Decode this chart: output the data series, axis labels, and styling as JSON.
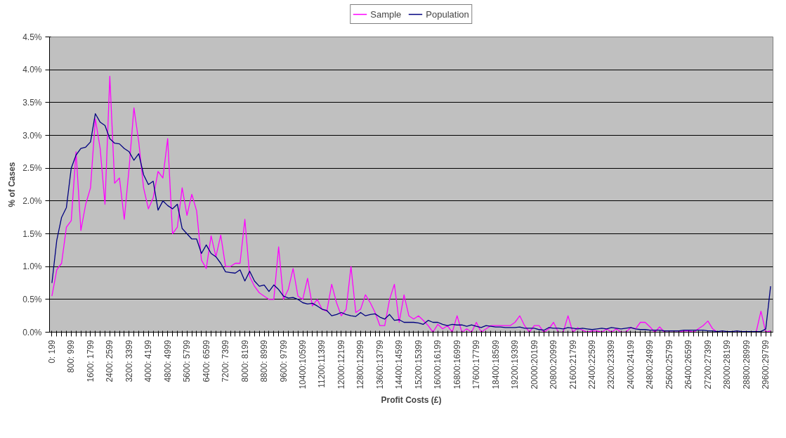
{
  "chart_data": {
    "type": "line",
    "xlabel": "Profit Costs (£)",
    "ylabel": "% of Cases",
    "categories": [
      "0: 199",
      null,
      null,
      null,
      "800: 999",
      null,
      null,
      null,
      "1600: 1799",
      null,
      null,
      null,
      "2400: 2599",
      null,
      null,
      null,
      "3200: 3399",
      null,
      null,
      null,
      "4000: 4199",
      null,
      null,
      null,
      "4800: 4999",
      null,
      null,
      null,
      "5600: 5799",
      null,
      null,
      null,
      "6400: 6599",
      null,
      null,
      null,
      "7200: 7399",
      null,
      null,
      null,
      "8000: 8199",
      null,
      null,
      null,
      "8800: 8999",
      null,
      null,
      null,
      "9600: 9799",
      null,
      null,
      null,
      "10400:10599",
      null,
      null,
      null,
      "11200:11399",
      null,
      null,
      null,
      "12000:12199",
      null,
      null,
      null,
      "12800:12999",
      null,
      null,
      null,
      "13600:13799",
      null,
      null,
      null,
      "14400:14599",
      null,
      null,
      null,
      "15200:15399",
      null,
      null,
      null,
      "16000:16199",
      null,
      null,
      null,
      "16800:16999",
      null,
      null,
      null,
      "17600:17799",
      null,
      null,
      null,
      "18400:18599",
      null,
      null,
      null,
      "19200:19399",
      null,
      null,
      null,
      "20000:20199",
      null,
      null,
      null,
      "20800:20999",
      null,
      null,
      null,
      "21600:21799",
      null,
      null,
      null,
      "22400:22599",
      null,
      null,
      null,
      "23200:23399",
      null,
      null,
      null,
      "24000:24199",
      null,
      null,
      null,
      "24800:24999",
      null,
      null,
      null,
      "25600:25799",
      null,
      null,
      null,
      "26400:26599",
      null,
      null,
      null,
      "27200:27399",
      null,
      null,
      null,
      "28000:28199",
      null,
      null,
      null,
      "28800:28999",
      null,
      null,
      null,
      "29600:29799",
      null
    ],
    "series": [
      {
        "name": "Sample",
        "color": "#ff00ff",
        "values": [
          0.55,
          0.95,
          1.05,
          1.6,
          1.7,
          2.75,
          1.55,
          1.95,
          2.2,
          3.25,
          2.8,
          1.95,
          3.9,
          2.27,
          2.35,
          1.72,
          2.5,
          3.42,
          2.9,
          2.2,
          1.88,
          2.05,
          2.45,
          2.35,
          2.95,
          1.5,
          1.6,
          2.2,
          1.78,
          2.1,
          1.85,
          1.1,
          0.97,
          1.47,
          1.15,
          1.48,
          1.0,
          1.0,
          1.05,
          1.05,
          1.72,
          0.85,
          0.7,
          0.6,
          0.55,
          0.5,
          0.5,
          1.3,
          0.5,
          0.65,
          0.97,
          0.55,
          0.5,
          0.82,
          0.4,
          0.5,
          0.35,
          0.32,
          0.73,
          0.45,
          0.25,
          0.35,
          1.0,
          0.3,
          0.35,
          0.57,
          0.45,
          0.3,
          0.1,
          0.1,
          0.5,
          0.73,
          0.15,
          0.57,
          0.25,
          0.2,
          0.25,
          0.18,
          0.1,
          0.0,
          0.12,
          0.05,
          0.1,
          0.0,
          0.25,
          0.0,
          0.05,
          0.0,
          0.15,
          0.0,
          0.05,
          0.1,
          0.1,
          0.1,
          0.1,
          0.1,
          0.15,
          0.25,
          0.1,
          0.0,
          0.1,
          0.1,
          0.0,
          0.05,
          0.15,
          0.0,
          0.0,
          0.25,
          0.0,
          0.07,
          0.03,
          0.0,
          0.02,
          0.02,
          0.0,
          0.05,
          0.0,
          0.05,
          0.0,
          0.0,
          0.07,
          0.05,
          0.15,
          0.15,
          0.08,
          0.0,
          0.08,
          0.0,
          0.0,
          0.0,
          0.0,
          0.02,
          0.02,
          0.0,
          0.05,
          0.1,
          0.17,
          0.05,
          0.0,
          0.0,
          0.0,
          0.0,
          0.0,
          0.0,
          0.0,
          0.0,
          0.0,
          0.32,
          0.0,
          0.02
        ]
      },
      {
        "name": "Population",
        "color": "#000080",
        "values": [
          0.75,
          1.4,
          1.75,
          1.9,
          2.5,
          2.7,
          2.8,
          2.82,
          2.9,
          3.33,
          3.2,
          3.15,
          2.95,
          2.88,
          2.87,
          2.8,
          2.75,
          2.62,
          2.72,
          2.4,
          2.25,
          2.3,
          1.86,
          2.0,
          1.93,
          1.88,
          1.95,
          1.58,
          1.5,
          1.42,
          1.42,
          1.2,
          1.33,
          1.2,
          1.15,
          1.05,
          0.92,
          0.91,
          0.9,
          0.95,
          0.78,
          0.93,
          0.78,
          0.7,
          0.72,
          0.62,
          0.72,
          0.65,
          0.55,
          0.52,
          0.53,
          0.5,
          0.45,
          0.43,
          0.44,
          0.4,
          0.35,
          0.33,
          0.25,
          0.27,
          0.3,
          0.27,
          0.25,
          0.24,
          0.3,
          0.25,
          0.27,
          0.28,
          0.23,
          0.2,
          0.27,
          0.18,
          0.19,
          0.15,
          0.15,
          0.15,
          0.14,
          0.12,
          0.18,
          0.15,
          0.15,
          0.12,
          0.1,
          0.12,
          0.11,
          0.11,
          0.09,
          0.11,
          0.09,
          0.07,
          0.1,
          0.09,
          0.08,
          0.08,
          0.07,
          0.07,
          0.07,
          0.08,
          0.06,
          0.06,
          0.06,
          0.04,
          0.03,
          0.07,
          0.06,
          0.06,
          0.05,
          0.07,
          0.06,
          0.05,
          0.06,
          0.05,
          0.04,
          0.05,
          0.06,
          0.05,
          0.07,
          0.06,
          0.05,
          0.06,
          0.07,
          0.05,
          0.04,
          0.04,
          0.03,
          0.03,
          0.03,
          0.02,
          0.02,
          0.02,
          0.02,
          0.03,
          0.03,
          0.03,
          0.03,
          0.03,
          0.02,
          0.02,
          0.01,
          0.02,
          0.01,
          0.01,
          0.02,
          0.01,
          0.01,
          0.01,
          0.01,
          0.01,
          0.05,
          0.7
        ]
      }
    ],
    "ylim": [
      0,
      4.5
    ],
    "yticks": [
      {
        "value": 0,
        "label": "0.0%"
      },
      {
        "value": 0.5,
        "label": "0.5%"
      },
      {
        "value": 1,
        "label": "1.0%"
      },
      {
        "value": 1.5,
        "label": "1.5%"
      },
      {
        "value": 2,
        "label": "2.0%"
      },
      {
        "value": 2.5,
        "label": "2.5%"
      },
      {
        "value": 3,
        "label": "3.0%"
      },
      {
        "value": 3.5,
        "label": "3.5%"
      },
      {
        "value": 4,
        "label": "4.0%"
      },
      {
        "value": 4.5,
        "label": "4.5%"
      }
    ],
    "grid": "y",
    "legend": "top",
    "marker": "none",
    "line_style": "solid"
  }
}
